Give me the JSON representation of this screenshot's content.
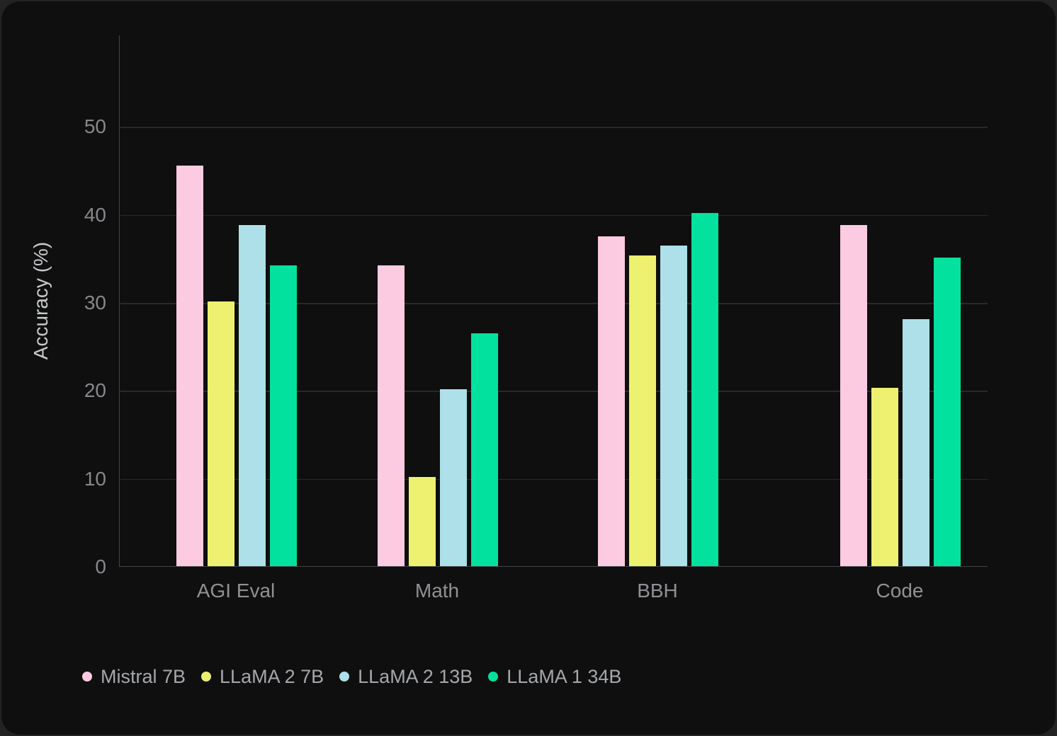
{
  "chart_data": {
    "type": "bar",
    "title": "",
    "categories": [
      "AGI Eval",
      "Math",
      "BBH",
      "Code"
    ],
    "series": [
      {
        "name": "Mistral 7B",
        "color": "#FDCBE1",
        "values": [
          45.5,
          34.2,
          37.5,
          38.8
        ]
      },
      {
        "name": "LLaMA 2 7B",
        "color": "#EEF06F",
        "values": [
          30.1,
          10.1,
          35.3,
          20.3
        ]
      },
      {
        "name": "LLaMA 2 13B",
        "color": "#ADE0E8",
        "values": [
          38.8,
          20.1,
          36.4,
          28.1
        ]
      },
      {
        "name": "LLaMA 1 34B",
        "color": "#02E29E",
        "values": [
          34.2,
          26.5,
          40.1,
          35.1
        ]
      }
    ],
    "xlabel": "",
    "ylabel": "Accuracy (%)",
    "yticks": [
      0,
      10,
      20,
      30,
      40,
      50
    ],
    "ylim": [
      0,
      60
    ],
    "grid": "horizontal",
    "legend_position": "bottom-left",
    "colors": {
      "background": "#0E0F0E",
      "outer_background": "#232323",
      "axis_line": "#44454A",
      "gridline": "#29292B",
      "tick_text": "#87888D",
      "category_text": "#909196",
      "axis_title_text": "#C9CACD",
      "legend_text": "#A6A7AD"
    }
  }
}
